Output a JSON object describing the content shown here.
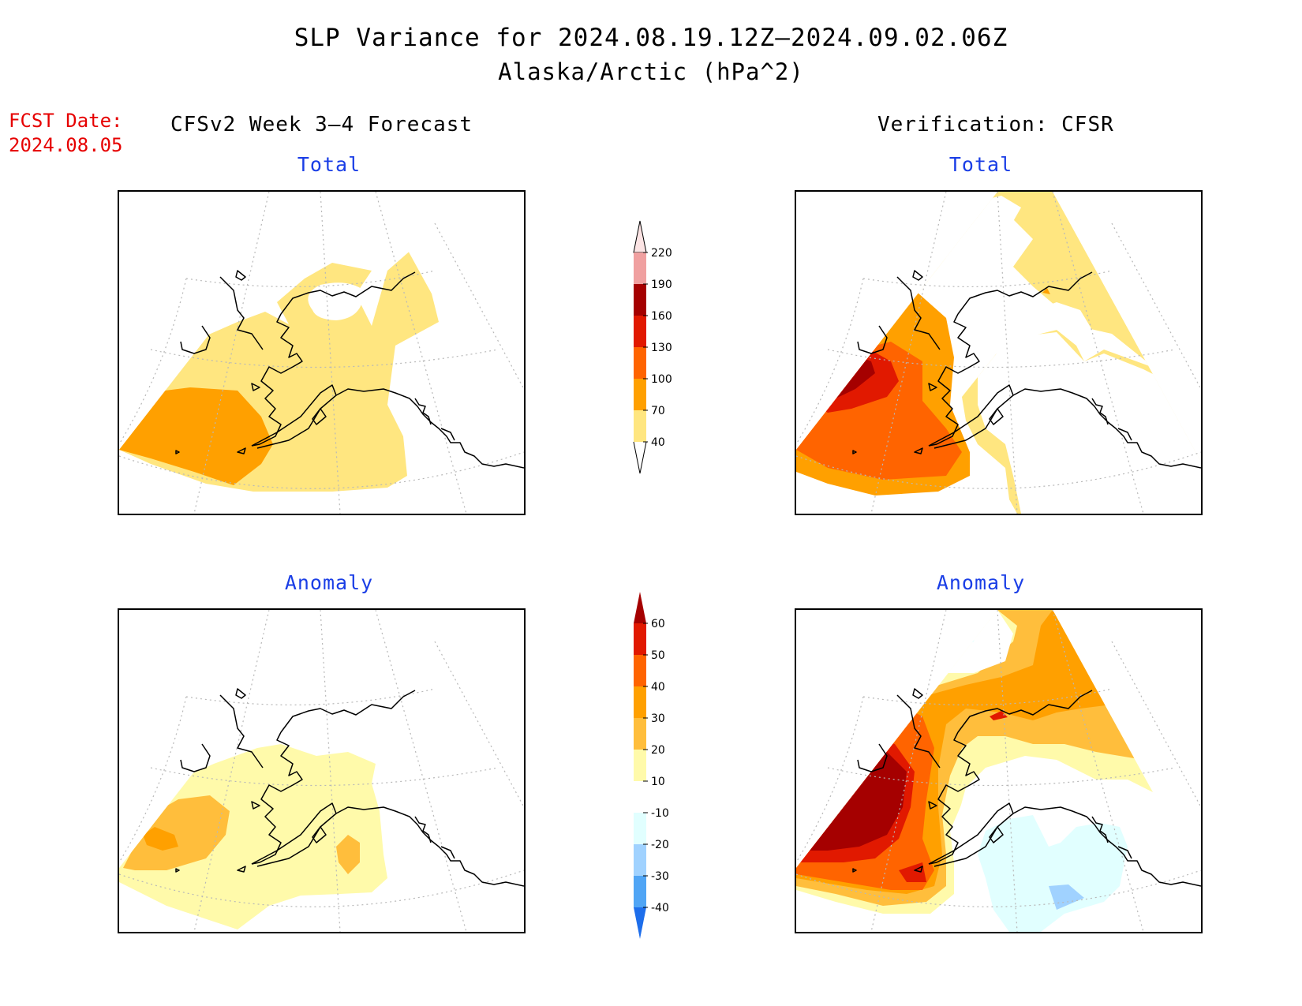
{
  "header": {
    "title_line1": "SLP Variance for 2024.08.19.12Z–2024.09.02.06Z",
    "title_line2": "Alaska/Arctic (hPa^2)",
    "fcst_label": "FCST Date:",
    "fcst_date": "2024.08.05",
    "left_heading": "CFSv2 Week 3–4 Forecast",
    "right_heading": "Verification: CFSR"
  },
  "panels": {
    "fcst_total": {
      "title": "Total"
    },
    "verif_total": {
      "title": "Total"
    },
    "fcst_anom": {
      "title": "Anomaly"
    },
    "verif_anom": {
      "title": "Anomaly"
    }
  },
  "colorbars": {
    "total": {
      "levels": [
        "40",
        "70",
        "100",
        "130",
        "160",
        "190",
        "220"
      ],
      "colors": [
        "#ffe680",
        "#ffa000",
        "#ff6400",
        "#e11900",
        "#a50000",
        "#f0a0a0",
        "#fce4e4"
      ]
    },
    "anomaly": {
      "levels": [
        "60",
        "50",
        "40",
        "30",
        "20",
        "10",
        "-10",
        "-20",
        "-30",
        "-40"
      ],
      "colors": [
        "#a50000",
        "#e11900",
        "#ff6400",
        "#ffa000",
        "#ffbe3c",
        "#fffaaa",
        "#ffffff",
        "#e1ffff",
        "#a0d2ff",
        "#50a5f5",
        "#1e6eeb"
      ]
    }
  },
  "colors": {
    "title_red": "#e60000",
    "panel_title_blue": "#1a3ee6"
  }
}
